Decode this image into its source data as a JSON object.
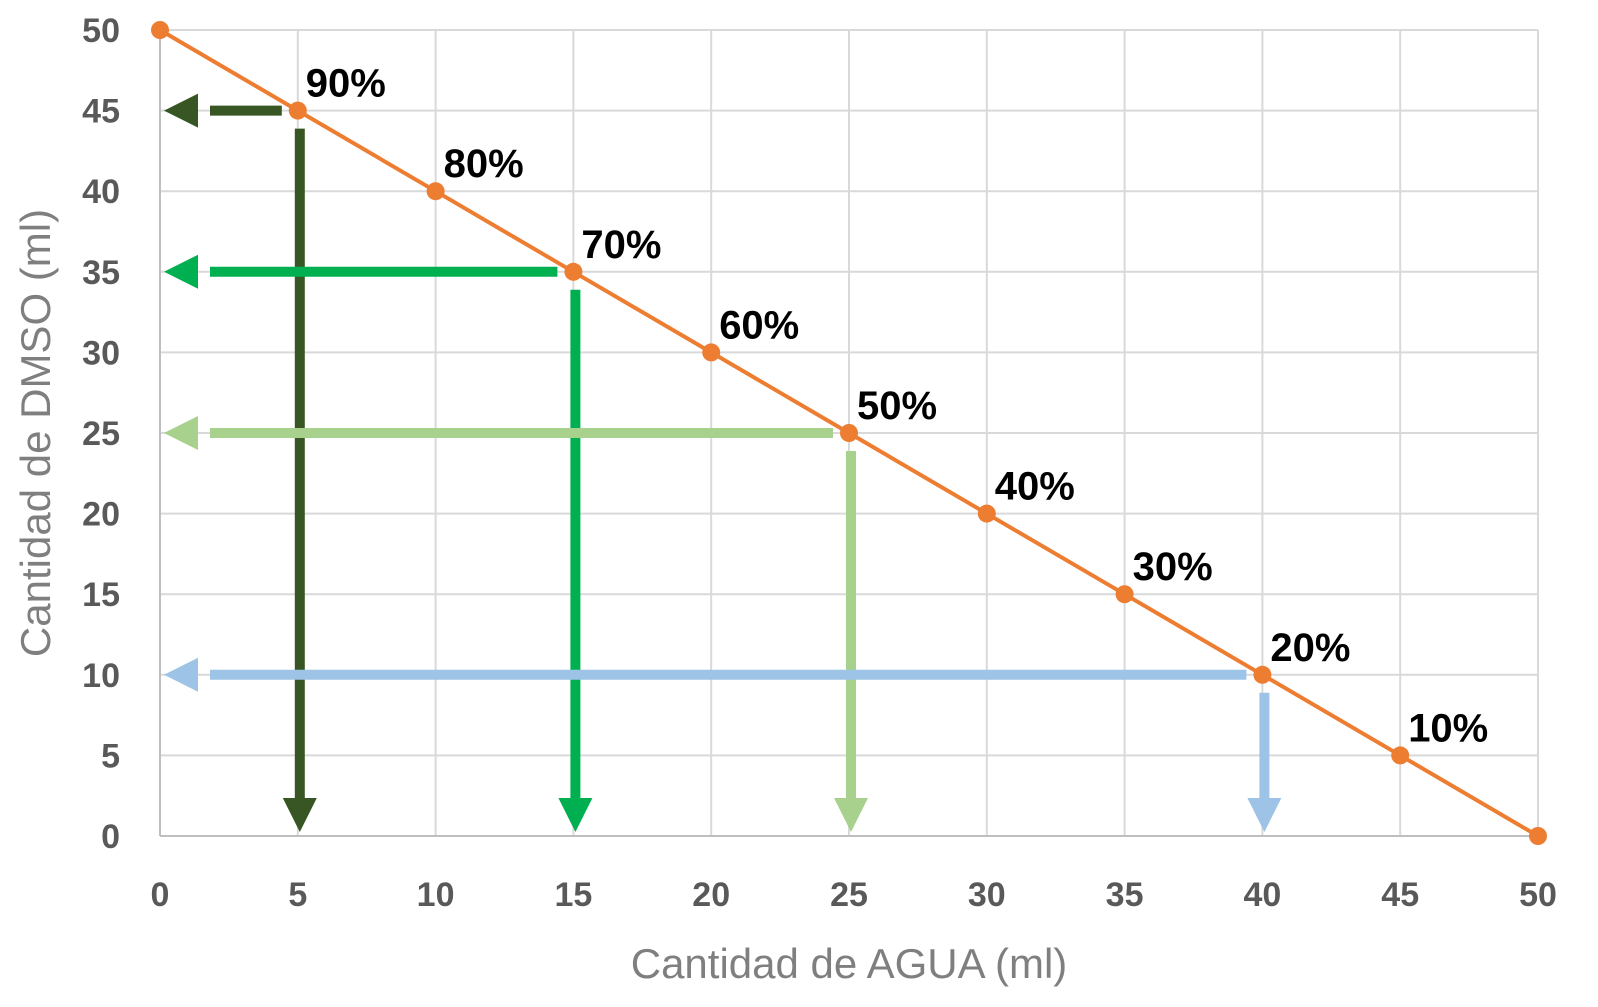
{
  "chart_data": {
    "type": "line",
    "title": "",
    "xlabel": "Cantidad de AGUA (ml)",
    "ylabel": "Cantidad de DMSO (ml)",
    "xlim": [
      0,
      50
    ],
    "ylim": [
      0,
      50
    ],
    "x_ticks": [
      "0",
      "5",
      "10",
      "15",
      "20",
      "25",
      "30",
      "35",
      "40",
      "45",
      "50"
    ],
    "y_ticks": [
      "0",
      "5",
      "10",
      "15",
      "20",
      "25",
      "30",
      "35",
      "40",
      "45",
      "50"
    ],
    "grid": true,
    "legend": "none",
    "series": [
      {
        "color": "#ed7d31",
        "x": [
          0,
          5,
          10,
          15,
          20,
          25,
          30,
          35,
          40,
          45,
          50
        ],
        "y": [
          50,
          45,
          40,
          35,
          30,
          25,
          20,
          15,
          10,
          5,
          0
        ]
      }
    ],
    "annotations": [
      {
        "text": "90%",
        "x": 5,
        "y": 45
      },
      {
        "text": "80%",
        "x": 10,
        "y": 40
      },
      {
        "text": "70%",
        "x": 15,
        "y": 35
      },
      {
        "text": "60%",
        "x": 20,
        "y": 30
      },
      {
        "text": "50%",
        "x": 25,
        "y": 25
      },
      {
        "text": "40%",
        "x": 30,
        "y": 20
      },
      {
        "text": "30%",
        "x": 35,
        "y": 15
      },
      {
        "text": "20%",
        "x": 40,
        "y": 10
      },
      {
        "text": "10%",
        "x": 45,
        "y": 5
      }
    ],
    "guide_arrows": [
      {
        "x": 5,
        "y": 45,
        "color": "#375623"
      },
      {
        "x": 15,
        "y": 35,
        "color": "#00b050"
      },
      {
        "x": 25,
        "y": 25,
        "color": "#a9d18e"
      },
      {
        "x": 40,
        "y": 10,
        "color": "#9dc3e6"
      }
    ]
  }
}
